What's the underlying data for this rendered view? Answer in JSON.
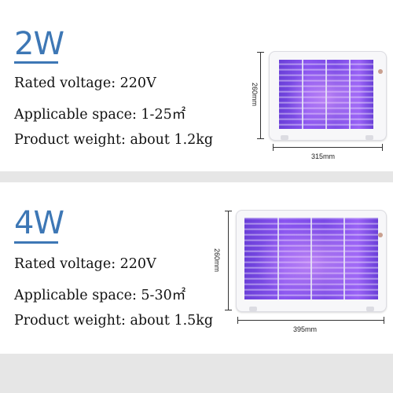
{
  "sections": [
    {
      "power": "2W",
      "specs": [
        "Rated voltage: 220V",
        "Applicable space: 1-25㎡",
        "Product weight: about 1.2kg"
      ],
      "height_label": "260mm",
      "width_label": "315mm"
    },
    {
      "power": "4W",
      "specs": [
        "Rated voltage: 220V",
        "Applicable space: 5-30㎡",
        "Product weight: about 1.5kg"
      ],
      "height_label": "260mm",
      "width_label": "395mm"
    }
  ],
  "colors": {
    "accent": "#3d77b5",
    "uv_light": "#7a4ae6"
  },
  "icons": [
    "mosquito-lamp-image-2w",
    "mosquito-lamp-image-4w"
  ]
}
